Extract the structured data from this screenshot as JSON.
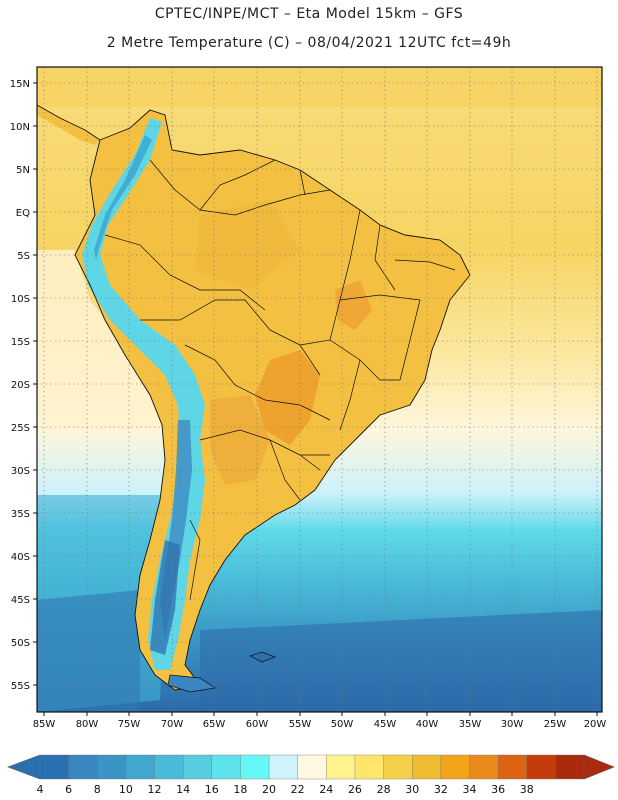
{
  "title_line1": "CPTEC/INPE/MCT –   Eta Model 15km – GFS",
  "title_line2": "2 Metre Temperature (C) – 08/04/2021 12UTC fct=49h",
  "lat_labels": [
    "15N",
    "10N",
    "5N",
    "EQ",
    "5S",
    "10S",
    "15S",
    "20S",
    "25S",
    "30S",
    "35S",
    "40S",
    "45S",
    "50S",
    "55S"
  ],
  "lon_labels": [
    "85W",
    "80W",
    "75W",
    "70W",
    "65W",
    "60W",
    "55W",
    "50W",
    "45W",
    "40W",
    "35W",
    "30W",
    "25W",
    "20W"
  ],
  "colorbar": {
    "labels": [
      "4",
      "6",
      "8",
      "10",
      "12",
      "14",
      "16",
      "18",
      "20",
      "22",
      "24",
      "26",
      "28",
      "30",
      "32",
      "34",
      "36",
      "38"
    ],
    "colors": [
      "#2a6fb0",
      "#3a86c0",
      "#3a94c4",
      "#40a7cd",
      "#49bbd8",
      "#56cde0",
      "#5ee3ea",
      "#66f7f7",
      "#cff3fb",
      "#fff8e0",
      "#fff48c",
      "#ffe56b",
      "#f7d04a",
      "#efbb30",
      "#f3a51a",
      "#ea8a1d",
      "#dd6313",
      "#c43c0c",
      "#aa2a0c"
    ]
  },
  "legend": {
    "warm": "#f5c745",
    "hot": "#eaa434",
    "cool_sea": "#fff6dc",
    "cold_sea": "#4aaed2",
    "coldest": "#2f6fae"
  }
}
